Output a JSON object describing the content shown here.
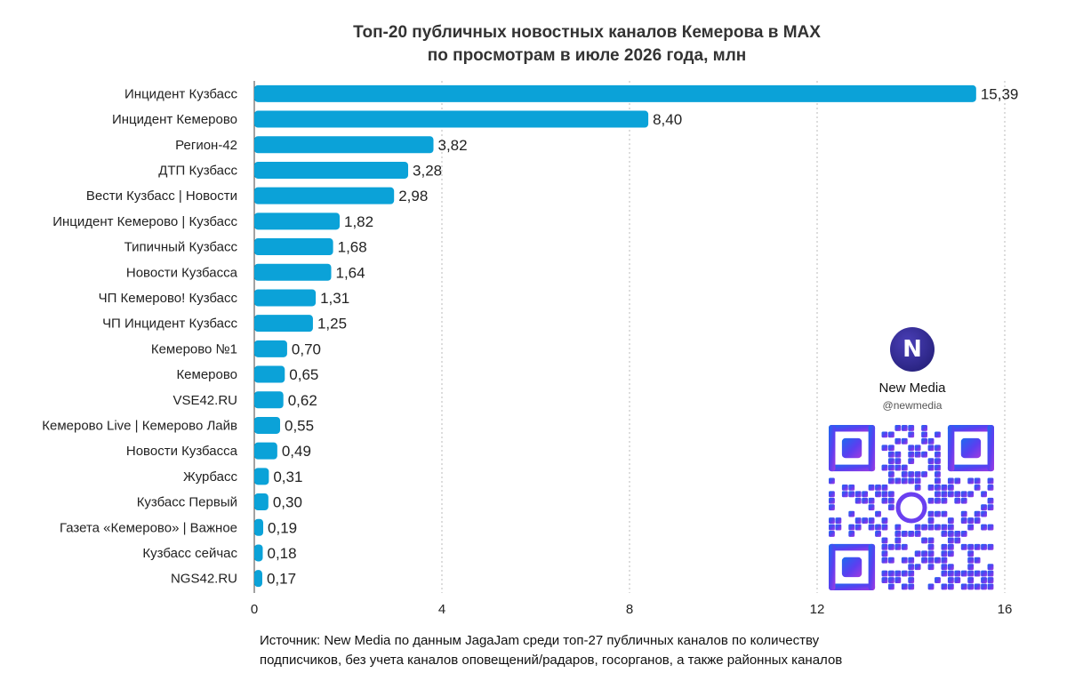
{
  "chart_data": {
    "type": "bar",
    "orientation": "horizontal",
    "title_lines": [
      "Топ-20 публичных новостных каналов Кемерова в MAX",
      "по просмотрам в июле 2026 года, млн"
    ],
    "categories": [
      "Инцидент Кузбасс",
      "Инцидент Кемерово",
      "Регион-42",
      "ДТП Кузбасс",
      "Вести Кузбасс | Новости",
      "Инцидент Кемерово | Кузбасс",
      "Типичный Кузбасс",
      "Новости Кузбасса",
      "ЧП Кемерово! Кузбасс",
      "ЧП Инцидент Кузбасс",
      "Кемерово №1",
      "Кемерово",
      "VSE42.RU",
      "Кемерово Live | Кемерово Лайв",
      "Новости Кузбасса",
      "Журбасс",
      "Кузбасс Первый",
      "Газета «Кемерово» | Важное",
      "Кузбасс сейчас",
      "NGS42.RU"
    ],
    "values": [
      15.39,
      8.4,
      3.82,
      3.28,
      2.98,
      1.82,
      1.68,
      1.64,
      1.31,
      1.25,
      0.7,
      0.65,
      0.62,
      0.55,
      0.49,
      0.31,
      0.3,
      0.19,
      0.18,
      0.17
    ],
    "value_labels": [
      "15,39",
      "8,40",
      "3,82",
      "3,28",
      "2,98",
      "1,82",
      "1,68",
      "1,64",
      "1,31",
      "1,25",
      "0,70",
      "0,65",
      "0,62",
      "0,55",
      "0,49",
      "0,31",
      "0,30",
      "0,19",
      "0,18",
      "0,17"
    ],
    "xlim": [
      0,
      16
    ],
    "xticks": [
      0,
      4,
      8,
      12,
      16
    ],
    "grid": "vertical-dotted",
    "bar_color": "#0ba2d8"
  },
  "source_note_lines": [
    "Источник: New Media по данным JagaJam среди топ-27 публичных каналов по количеству",
    "подписчиков, без учета каналов оповещений/радаров, госорганов, а также районных каналов"
  ],
  "brand": {
    "name": "New Media",
    "handle": "@newmedia",
    "logo_glyph": "N",
    "logo_icon": "new-media-logo-icon",
    "qr_icon": "qr-code-icon"
  }
}
